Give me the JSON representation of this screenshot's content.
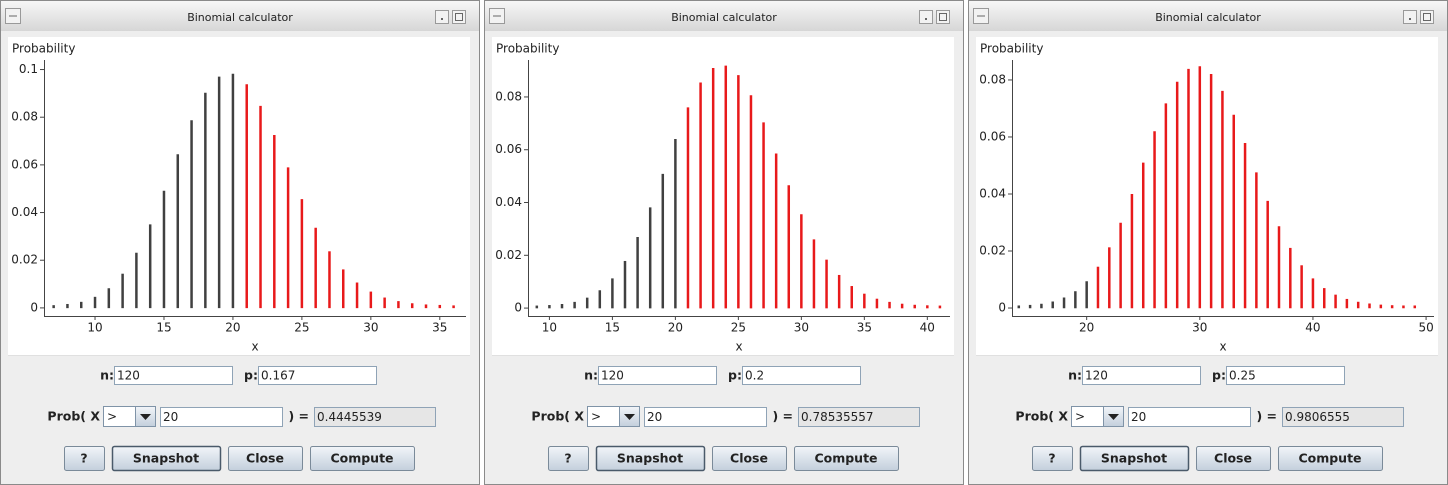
{
  "windows": [
    {
      "title": "Binomial calculator",
      "chart_data": {
        "type": "bar",
        "y_label": "Probability",
        "x_label": "x",
        "x": [
          7,
          8,
          9,
          10,
          11,
          12,
          13,
          14,
          15,
          16,
          17,
          18,
          19,
          20,
          21,
          22,
          23,
          24,
          25,
          26,
          27,
          28,
          29,
          30,
          31,
          32,
          33,
          34,
          35,
          36
        ],
        "values": [
          0.0002,
          0.0007,
          0.0016,
          0.0037,
          0.0073,
          0.0134,
          0.0222,
          0.0341,
          0.0482,
          0.0635,
          0.0778,
          0.0893,
          0.0961,
          0.0973,
          0.0929,
          0.0838,
          0.0716,
          0.058,
          0.0447,
          0.0327,
          0.0228,
          0.0152,
          0.0097,
          0.0059,
          0.0034,
          0.0019,
          0.001,
          0.0005,
          0.0003,
          0.0001
        ],
        "xlim": [
          6.3,
          36.9
        ],
        "ylim": [
          -0.0034,
          0.104
        ],
        "xticks": [
          10,
          15,
          20,
          25,
          30,
          35
        ],
        "yticks": [
          0,
          0.02,
          0.04,
          0.06,
          0.08,
          0.1
        ],
        "color": "#404040",
        "highlight_color": "#e8191a"
      },
      "form": {
        "n_label": "n:",
        "n": "120",
        "p_label": "p:",
        "p": "0.167",
        "prob_label": "Prob( X",
        "operator": ">",
        "threshold": "20",
        "equals": ") =",
        "result": "0.4445539",
        "buttons": [
          "?",
          "Snapshot",
          "Close",
          "Compute"
        ]
      }
    },
    {
      "title": "Binomial calculator",
      "chart_data": {
        "type": "bar",
        "y_label": "Probability",
        "x_label": "x",
        "x": [
          9,
          10,
          11,
          12,
          13,
          14,
          15,
          16,
          17,
          18,
          19,
          20,
          21,
          22,
          23,
          24,
          25,
          26,
          27,
          28,
          29,
          30,
          31,
          32,
          33,
          34,
          35,
          36,
          37,
          38,
          39,
          40,
          41
        ],
        "values": [
          0.0001,
          0.0003,
          0.0007,
          0.0015,
          0.0031,
          0.0059,
          0.0104,
          0.017,
          0.0261,
          0.0373,
          0.05,
          0.0632,
          0.0752,
          0.0846,
          0.0901,
          0.091,
          0.0874,
          0.0798,
          0.0695,
          0.0577,
          0.0457,
          0.0347,
          0.0252,
          0.0175,
          0.0117,
          0.0075,
          0.0046,
          0.0027,
          0.0015,
          0.0008,
          0.0004,
          0.0002,
          0.0001
        ],
        "xlim": [
          8.3,
          41.8
        ],
        "ylim": [
          -0.003,
          0.094
        ],
        "xticks": [
          10,
          15,
          20,
          25,
          30,
          35,
          40
        ],
        "yticks": [
          0,
          0.02,
          0.04,
          0.06,
          0.08
        ],
        "color": "#404040",
        "highlight_color": "#e8191a"
      },
      "form": {
        "n_label": "n:",
        "n": "120",
        "p_label": "p:",
        "p": "0.2",
        "prob_label": "Prob( X",
        "operator": ">",
        "threshold": "20",
        "equals": ") =",
        "result": "0.78535557",
        "buttons": [
          "?",
          "Snapshot",
          "Close",
          "Compute"
        ]
      }
    },
    {
      "title": "Binomial calculator",
      "chart_data": {
        "type": "bar",
        "y_label": "Probability",
        "x_label": "x",
        "x": [
          14,
          15,
          16,
          17,
          18,
          19,
          20,
          21,
          22,
          23,
          24,
          25,
          26,
          27,
          28,
          29,
          30,
          31,
          32,
          33,
          34,
          35,
          36,
          37,
          38,
          39,
          40,
          41,
          42,
          43,
          44,
          45,
          46,
          47,
          48,
          49
        ],
        "values": [
          0.0001,
          0.0003,
          0.0007,
          0.0015,
          0.0029,
          0.0051,
          0.0086,
          0.0137,
          0.0205,
          0.0291,
          0.0392,
          0.0502,
          0.0612,
          0.071,
          0.0786,
          0.0831,
          0.084,
          0.0813,
          0.0754,
          0.067,
          0.0571,
          0.0468,
          0.0368,
          0.0279,
          0.0203,
          0.0142,
          0.0096,
          0.0062,
          0.0039,
          0.0024,
          0.0014,
          0.0008,
          0.0004,
          0.0002,
          0.0001,
          0.0001
        ],
        "xlim": [
          13.4,
          50.7
        ],
        "ylim": [
          -0.0028,
          0.087
        ],
        "xticks": [
          20,
          30,
          40,
          50
        ],
        "yticks": [
          0,
          0.02,
          0.04,
          0.06,
          0.08
        ],
        "color": "#404040",
        "highlight_color": "#e8191a"
      },
      "form": {
        "n_label": "n:",
        "n": "120",
        "p_label": "p:",
        "p": "0.25",
        "prob_label": "Prob( X",
        "operator": ">",
        "threshold": "20",
        "equals": ") =",
        "result": "0.9806555",
        "buttons": [
          "?",
          "Snapshot",
          "Close",
          "Compute"
        ]
      }
    }
  ]
}
